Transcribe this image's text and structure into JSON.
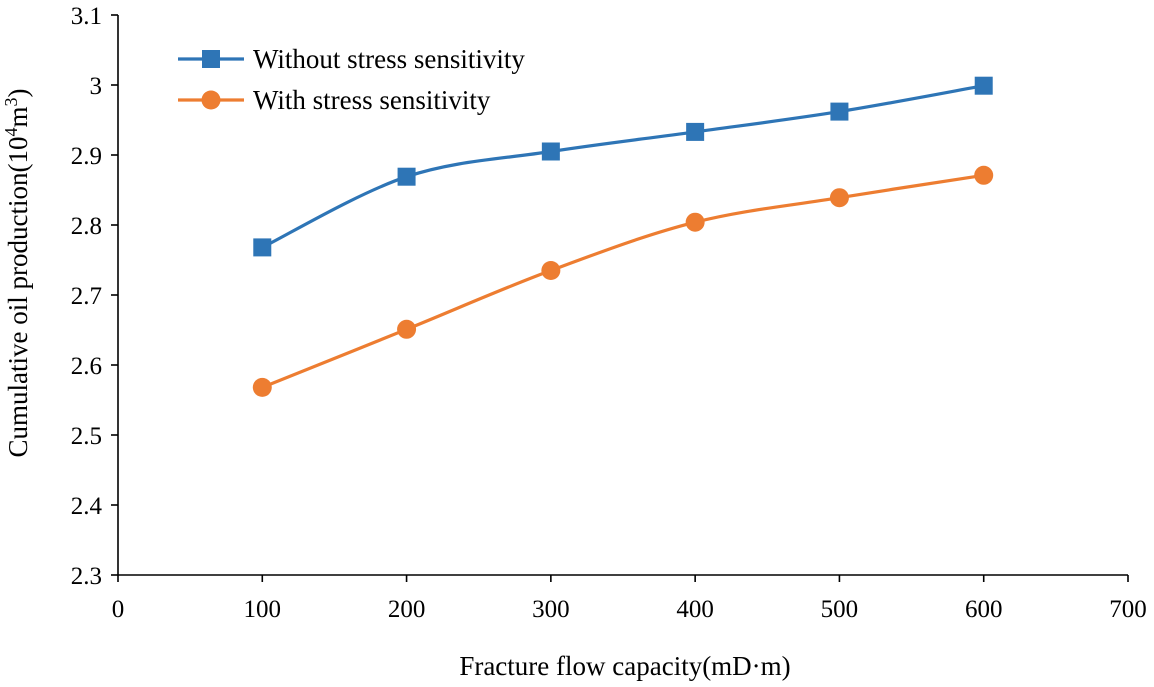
{
  "chart_data": {
    "type": "line",
    "title": "",
    "xlabel": "Fracture flow capacity(mD·m)",
    "ylabel": {
      "main": "Cumulative oil production(10",
      "sup1": "4",
      "mid": "m",
      "sup2": "3",
      "end": ")"
    },
    "xlim": [
      0,
      700
    ],
    "ylim": [
      2.3,
      3.1
    ],
    "xticks": [
      0,
      100,
      200,
      300,
      400,
      500,
      600,
      700
    ],
    "xtick_labels": [
      "0",
      "100",
      "200",
      "300",
      "400",
      "500",
      "600",
      "700"
    ],
    "yticks": [
      2.3,
      2.4,
      2.5,
      2.6,
      2.7,
      2.8,
      2.9,
      3.0,
      3.1
    ],
    "ytick_labels": [
      "2.3",
      "2.4",
      "2.5",
      "2.6",
      "2.7",
      "2.8",
      "2.9",
      "3",
      "3.1"
    ],
    "grid": false,
    "legend_position": "top-left",
    "x": [
      100,
      200,
      300,
      400,
      500,
      600
    ],
    "series": [
      {
        "name": "Without stress sensitivity",
        "values": [
          2.768,
          2.869,
          2.905,
          2.933,
          2.962,
          2.999
        ],
        "color": "#2E75B6",
        "marker": "square"
      },
      {
        "name": "With stress sensitivity",
        "values": [
          2.568,
          2.651,
          2.735,
          2.804,
          2.839,
          2.871
        ],
        "color": "#ED7D31",
        "marker": "circle"
      }
    ]
  }
}
